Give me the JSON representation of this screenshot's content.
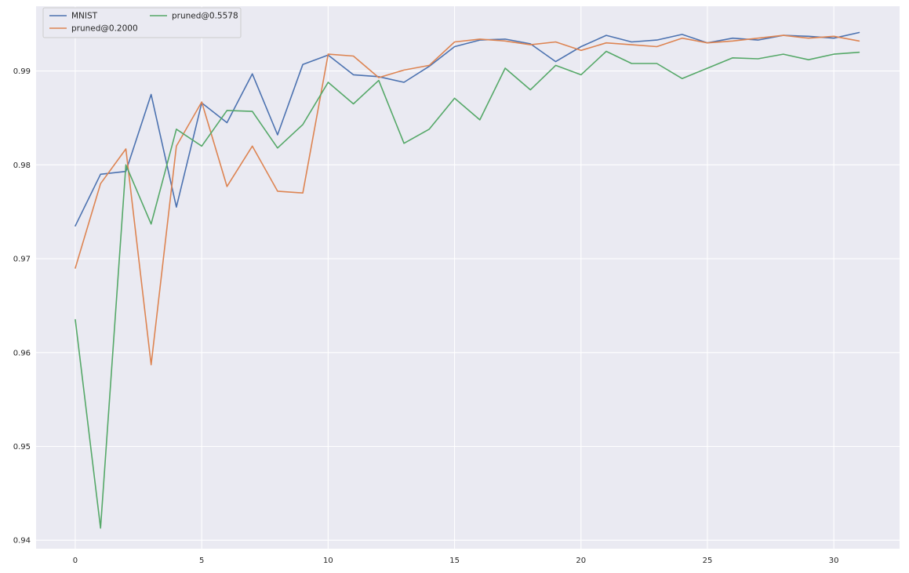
{
  "figure": {
    "background_color": "#ffffff",
    "axes_background_color": "#eaeaf2",
    "grid_color": "#ffffff",
    "tick_color": "#262626"
  },
  "legend": {
    "background_color": "#eaeaf2",
    "border_color": "#cccccc",
    "entries": [
      {
        "label": "MNIST",
        "color": "#4c72b0"
      },
      {
        "label": "pruned@0.2000",
        "color": "#dd8452"
      },
      {
        "label": "pruned@0.5578",
        "color": "#55a868"
      }
    ]
  },
  "chart_data": {
    "type": "line",
    "title": "",
    "xlabel": "",
    "ylabel": "",
    "xlim": [
      -1.55,
      32.6
    ],
    "ylim": [
      0.9391,
      0.9969
    ],
    "grid": true,
    "legend_position": "upper left",
    "x_ticks": [
      0,
      5,
      10,
      15,
      20,
      25,
      30
    ],
    "y_ticks": [
      0.94,
      0.95,
      0.96,
      0.97,
      0.98,
      0.99
    ],
    "x_tick_labels": [
      "0",
      "5",
      "10",
      "15",
      "20",
      "25",
      "30"
    ],
    "y_tick_labels": [
      "0.94",
      "0.95",
      "0.96",
      "0.97",
      "0.98",
      "0.99"
    ],
    "x": [
      0,
      1,
      2,
      3,
      4,
      5,
      6,
      7,
      8,
      9,
      10,
      11,
      12,
      13,
      14,
      15,
      16,
      17,
      18,
      19,
      20,
      21,
      22,
      23,
      24,
      25,
      26,
      27,
      28,
      29,
      30,
      31
    ],
    "series": [
      {
        "name": "MNIST",
        "color": "#4c72b0",
        "values": [
          0.9735,
          0.979,
          0.9793,
          0.9875,
          0.9755,
          0.9866,
          0.9845,
          0.9897,
          0.9832,
          0.9907,
          0.9917,
          0.9896,
          0.9894,
          0.9888,
          0.9905,
          0.9926,
          0.9933,
          0.9934,
          0.9929,
          0.991,
          0.9926,
          0.9938,
          0.9931,
          0.9933,
          0.9939,
          0.993,
          0.9935,
          0.9933,
          0.9938,
          0.9937,
          0.9935,
          0.9941
        ]
      },
      {
        "name": "pruned@0.2000",
        "color": "#dd8452",
        "values": [
          0.969,
          0.978,
          0.9817,
          0.9587,
          0.982,
          0.9867,
          0.9777,
          0.982,
          0.9772,
          0.977,
          0.9918,
          0.9916,
          0.9893,
          0.9901,
          0.9906,
          0.9931,
          0.9934,
          0.9932,
          0.9928,
          0.9931,
          0.9922,
          0.993,
          0.9928,
          0.9926,
          0.9935,
          0.993,
          0.9932,
          0.9935,
          0.9938,
          0.9935,
          0.9937,
          0.9932
        ]
      },
      {
        "name": "pruned@0.5578",
        "color": "#55a868",
        "values": [
          0.9635,
          0.9413,
          0.98,
          0.9737,
          0.9838,
          0.982,
          0.9858,
          0.9857,
          0.9818,
          0.9843,
          0.9888,
          0.9865,
          0.989,
          0.9823,
          0.9838,
          0.9871,
          0.9848,
          0.9903,
          0.988,
          0.9906,
          0.9896,
          0.9921,
          0.9908,
          0.9908,
          0.9892,
          0.9903,
          0.9914,
          0.9913,
          0.9918,
          0.9912,
          0.9918,
          0.992
        ]
      }
    ]
  }
}
